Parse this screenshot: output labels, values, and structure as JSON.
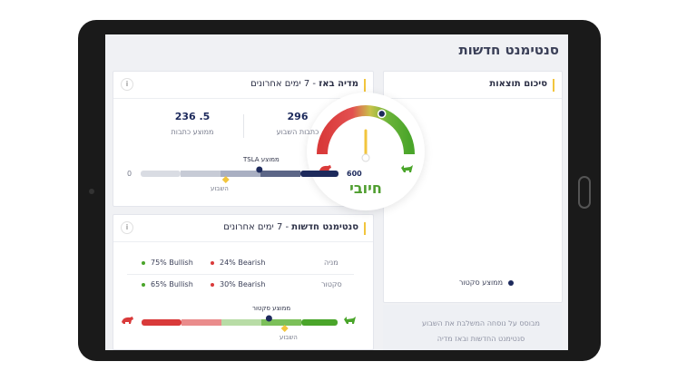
{
  "page": {
    "title": "סנטימנט חדשות"
  },
  "summary": {
    "title": "סיכום תוצאות",
    "gauge_label": "חיובי",
    "gauge_level": 0.62,
    "legend_sector": "ממוצע סקטור",
    "note_line1": "מבוסס על נוסחה המשלבת את השבוע",
    "note_line2": "סנטימנט החדשות ובאז מדיה",
    "colors": {
      "bearish": "#d93a3a",
      "bullish": "#4aa52a",
      "needle": "#f2c53d",
      "marker": "#1d2a5c"
    }
  },
  "buzz": {
    "title_bold": "מדיה באז",
    "title_rest": " - 7 ימים אחרונים",
    "info": "i",
    "articles_week_value": "296",
    "articles_week_label": "כתבות השבוע",
    "articles_avg_value": "236 .5",
    "articles_avg_label": "ממוצע כתבות",
    "track_label": "TSLA ממוצע",
    "track_min": "0",
    "track_max": "600",
    "week_label": "השבוע",
    "tsla_avg": 0.6,
    "week_position": 0.43
  },
  "news": {
    "title_bold": "סנטימנט חדשות",
    "title_rest": " - 7 ימים אחרונים",
    "info": "i",
    "rows": [
      {
        "label": "מניה",
        "bullish": "75% Bullish",
        "bearish": "24% Bearish"
      },
      {
        "label": "סקטור",
        "bullish": "65% Bullish",
        "bearish": "30% Bearish"
      }
    ],
    "track_label": "ממוצע סקטור",
    "week_label": "השבוע",
    "sector_position": 0.65,
    "week_position": 0.73
  }
}
